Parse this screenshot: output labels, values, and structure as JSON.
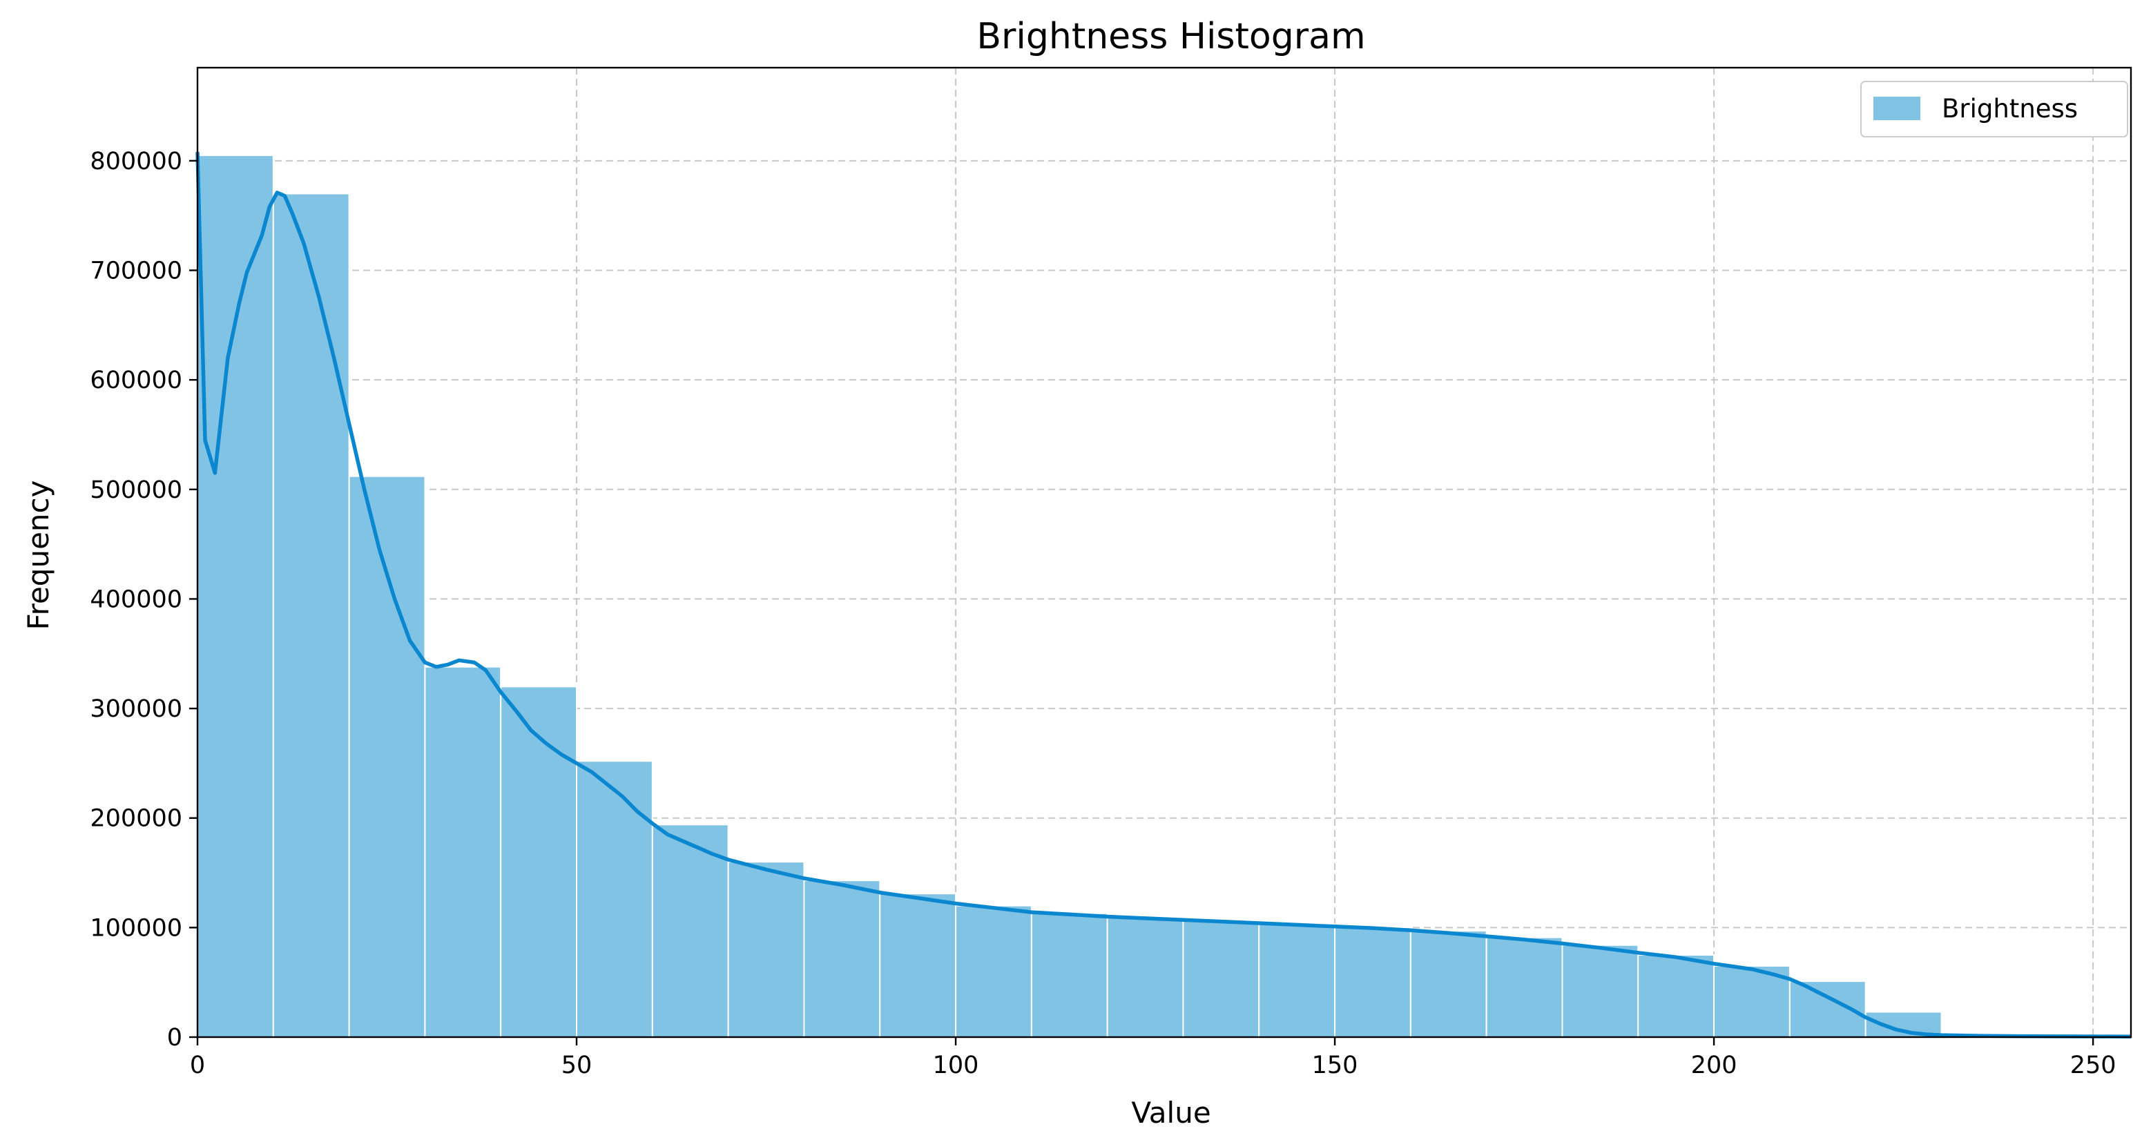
{
  "colors": {
    "bar_fill": "#80c3e5",
    "bar_edge": "#ffffff",
    "kde_line": "#0a87cf",
    "grid": "#c8c8c8",
    "axis": "#000000"
  },
  "chart_data": {
    "type": "bar",
    "title": "Brightness Histogram",
    "xlabel": "Value",
    "ylabel": "Frequency",
    "xlim": [
      0,
      255
    ],
    "ylim": [
      0,
      885000
    ],
    "xticks": [
      0,
      50,
      100,
      150,
      200,
      250
    ],
    "yticks": [
      0,
      100000,
      200000,
      300000,
      400000,
      500000,
      600000,
      700000,
      800000
    ],
    "grid": true,
    "legend": {
      "position": "top-right",
      "entries": [
        "Brightness"
      ]
    },
    "series": [
      {
        "name": "Brightness",
        "bins": [
          {
            "x0": 0,
            "x1": 10,
            "value": 805000
          },
          {
            "x0": 10,
            "x1": 20,
            "value": 770000
          },
          {
            "x0": 20,
            "x1": 30,
            "value": 512000
          },
          {
            "x0": 30,
            "x1": 40,
            "value": 338000
          },
          {
            "x0": 40,
            "x1": 50,
            "value": 320000
          },
          {
            "x0": 50,
            "x1": 60,
            "value": 252000
          },
          {
            "x0": 60,
            "x1": 70,
            "value": 194000
          },
          {
            "x0": 70,
            "x1": 80,
            "value": 160000
          },
          {
            "x0": 80,
            "x1": 90,
            "value": 143000
          },
          {
            "x0": 90,
            "x1": 100,
            "value": 131000
          },
          {
            "x0": 100,
            "x1": 110,
            "value": 120000
          },
          {
            "x0": 110,
            "x1": 120,
            "value": 113000
          },
          {
            "x0": 120,
            "x1": 130,
            "value": 109000
          },
          {
            "x0": 130,
            "x1": 140,
            "value": 106000
          },
          {
            "x0": 140,
            "x1": 150,
            "value": 103000
          },
          {
            "x0": 150,
            "x1": 160,
            "value": 100000
          },
          {
            "x0": 160,
            "x1": 170,
            "value": 97000
          },
          {
            "x0": 170,
            "x1": 180,
            "value": 91000
          },
          {
            "x0": 180,
            "x1": 190,
            "value": 84000
          },
          {
            "x0": 190,
            "x1": 200,
            "value": 75000
          },
          {
            "x0": 200,
            "x1": 210,
            "value": 65000
          },
          {
            "x0": 210,
            "x1": 220,
            "value": 51000
          },
          {
            "x0": 220,
            "x1": 230,
            "value": 23000
          },
          {
            "x0": 230,
            "x1": 240,
            "value": 1500
          },
          {
            "x0": 240,
            "x1": 250,
            "value": 500
          },
          {
            "x0": 250,
            "x1": 255,
            "value": 300
          }
        ]
      },
      {
        "kde": [
          [
            0,
            808000
          ],
          [
            1,
            545000
          ],
          [
            2.3,
            515000
          ],
          [
            4,
            620000
          ],
          [
            5.5,
            670000
          ],
          [
            6.5,
            698000
          ],
          [
            8.5,
            732000
          ],
          [
            9.5,
            758000
          ],
          [
            10.5,
            771000
          ],
          [
            11.5,
            768000
          ],
          [
            12.5,
            752000
          ],
          [
            14,
            725000
          ],
          [
            16,
            676000
          ],
          [
            18,
            620000
          ],
          [
            20,
            560000
          ],
          [
            22,
            500000
          ],
          [
            24,
            445000
          ],
          [
            26,
            400000
          ],
          [
            28,
            362000
          ],
          [
            30,
            342000
          ],
          [
            31.5,
            338000
          ],
          [
            33,
            340000
          ],
          [
            34.5,
            344000
          ],
          [
            36.5,
            342000
          ],
          [
            38,
            335000
          ],
          [
            40,
            315000
          ],
          [
            42,
            298000
          ],
          [
            44,
            280000
          ],
          [
            46,
            268000
          ],
          [
            48,
            258000
          ],
          [
            50,
            250000
          ],
          [
            52,
            242000
          ],
          [
            54,
            231000
          ],
          [
            56,
            220000
          ],
          [
            58,
            206000
          ],
          [
            60,
            195000
          ],
          [
            62,
            185000
          ],
          [
            65,
            176000
          ],
          [
            68,
            167000
          ],
          [
            70,
            162000
          ],
          [
            75,
            153000
          ],
          [
            80,
            145000
          ],
          [
            85,
            139000
          ],
          [
            90,
            132000
          ],
          [
            95,
            127000
          ],
          [
            100,
            122000
          ],
          [
            105,
            118000
          ],
          [
            110,
            114000
          ],
          [
            115,
            112000
          ],
          [
            120,
            110000
          ],
          [
            125,
            108500
          ],
          [
            130,
            107000
          ],
          [
            135,
            105500
          ],
          [
            140,
            104000
          ],
          [
            145,
            102500
          ],
          [
            150,
            101000
          ],
          [
            155,
            99500
          ],
          [
            160,
            97500
          ],
          [
            165,
            95000
          ],
          [
            170,
            92000
          ],
          [
            175,
            89000
          ],
          [
            180,
            85500
          ],
          [
            185,
            81500
          ],
          [
            190,
            77000
          ],
          [
            195,
            73000
          ],
          [
            200,
            67000
          ],
          [
            205,
            62000
          ],
          [
            208,
            57000
          ],
          [
            210,
            53000
          ],
          [
            212,
            47000
          ],
          [
            214,
            40000
          ],
          [
            216,
            33000
          ],
          [
            218,
            26000
          ],
          [
            220,
            18000
          ],
          [
            222,
            12000
          ],
          [
            224,
            7000
          ],
          [
            226,
            4000
          ],
          [
            228,
            2500
          ],
          [
            230,
            1800
          ],
          [
            235,
            1200
          ],
          [
            240,
            900
          ],
          [
            245,
            700
          ],
          [
            250,
            600
          ],
          [
            255,
            500
          ]
        ]
      }
    ]
  }
}
